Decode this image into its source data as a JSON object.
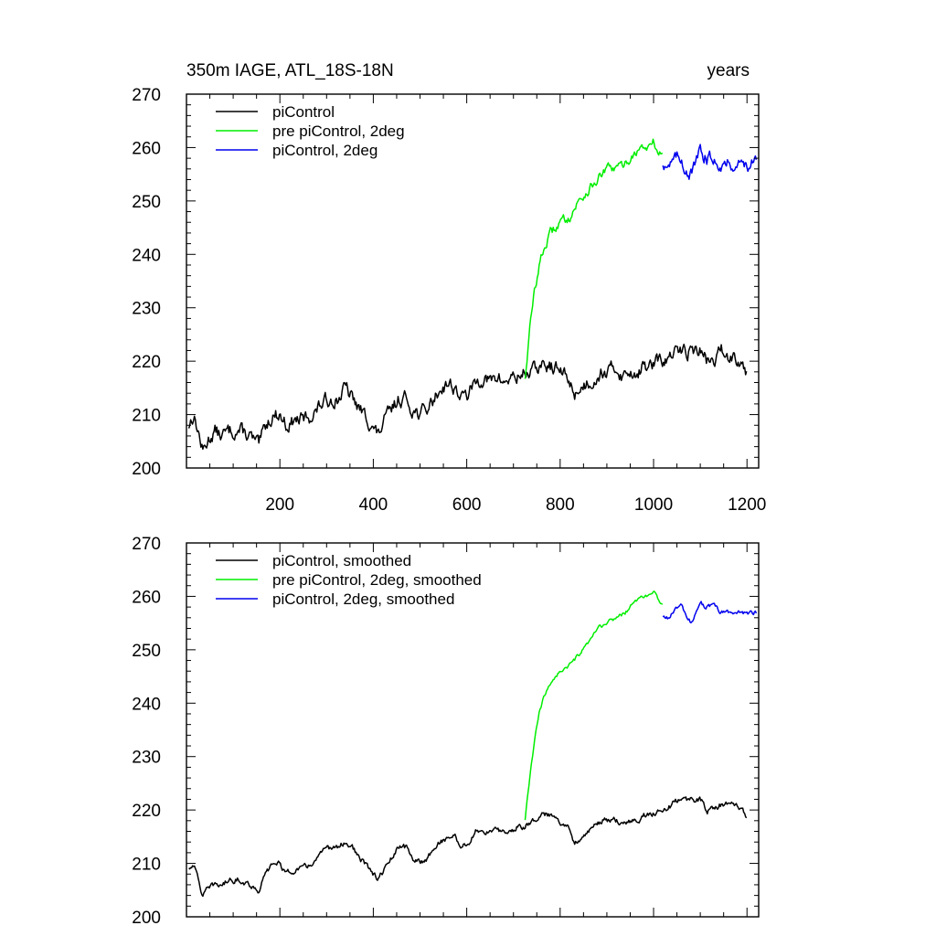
{
  "chart_data": [
    {
      "type": "line",
      "title": "350m IAGE, ATL_18S-18N",
      "units_label": "years",
      "xlabel": "",
      "ylabel": "",
      "xlim": [
        0,
        1225
      ],
      "ylim": [
        200,
        270
      ],
      "x_ticks": [
        200,
        400,
        600,
        800,
        1000,
        1200
      ],
      "y_ticks": [
        200,
        210,
        220,
        230,
        240,
        250,
        260,
        270
      ],
      "x_tick_labels": [
        "200",
        "400",
        "600",
        "800",
        "1000",
        "1200"
      ],
      "y_tick_labels": [
        "200",
        "210",
        "220",
        "230",
        "240",
        "250",
        "260",
        "270"
      ],
      "legend_position": "top-left",
      "grid": false,
      "series": [
        {
          "name": "piControl",
          "color": "#000000",
          "x_start": 5,
          "x_end": 1200,
          "anchors": [
            [
              5,
              208
            ],
            [
              15,
              210
            ],
            [
              25,
              207
            ],
            [
              35,
              203
            ],
            [
              45,
              205
            ],
            [
              60,
              207
            ],
            [
              75,
              206
            ],
            [
              95,
              207
            ],
            [
              115,
              207
            ],
            [
              135,
              206
            ],
            [
              155,
              204
            ],
            [
              170,
              208
            ],
            [
              185,
              210
            ],
            [
              200,
              210
            ],
            [
              215,
              208
            ],
            [
              235,
              209
            ],
            [
              250,
              209
            ],
            [
              270,
              210
            ],
            [
              290,
              212
            ],
            [
              310,
              213
            ],
            [
              325,
              213
            ],
            [
              340,
              215
            ],
            [
              355,
              213
            ],
            [
              370,
              211
            ],
            [
              390,
              209
            ],
            [
              410,
              206
            ],
            [
              425,
              209
            ],
            [
              440,
              211
            ],
            [
              455,
              213
            ],
            [
              470,
              213
            ],
            [
              485,
              211
            ],
            [
              500,
              210
            ],
            [
              515,
              211
            ],
            [
              530,
              213
            ],
            [
              545,
              215
            ],
            [
              560,
              216
            ],
            [
              575,
              215
            ],
            [
              590,
              213
            ],
            [
              605,
              214
            ],
            [
              620,
              216
            ],
            [
              635,
              217
            ],
            [
              650,
              216
            ],
            [
              665,
              217
            ],
            [
              680,
              216
            ],
            [
              695,
              217
            ],
            [
              710,
              217
            ],
            [
              725,
              218
            ],
            [
              740,
              218
            ],
            [
              755,
              219
            ],
            [
              770,
              219
            ],
            [
              785,
              219
            ],
            [
              800,
              218
            ],
            [
              815,
              217
            ],
            [
              830,
              214
            ],
            [
              845,
              215
            ],
            [
              860,
              216
            ],
            [
              875,
              217
            ],
            [
              890,
              218
            ],
            [
              905,
              218
            ],
            [
              920,
              219
            ],
            [
              935,
              217
            ],
            [
              950,
              218
            ],
            [
              965,
              218
            ],
            [
              980,
              219
            ],
            [
              995,
              219
            ],
            [
              1010,
              220
            ],
            [
              1025,
              220
            ],
            [
              1040,
              221
            ],
            [
              1055,
              222
            ],
            [
              1070,
              222
            ],
            [
              1085,
              222
            ],
            [
              1100,
              222
            ],
            [
              1115,
              220
            ],
            [
              1130,
              220
            ],
            [
              1145,
              222
            ],
            [
              1160,
              221
            ],
            [
              1175,
              221
            ],
            [
              1190,
              220
            ],
            [
              1200,
              218
            ]
          ],
          "noise": 1.1
        },
        {
          "name": "pre piControl, 2deg",
          "color": "#00ee00",
          "x_start": 725,
          "x_end": 1020,
          "anchors": [
            [
              725,
              217
            ],
            [
              735,
              226
            ],
            [
              745,
              233
            ],
            [
              755,
              238
            ],
            [
              765,
              241
            ],
            [
              780,
              244
            ],
            [
              800,
              246
            ],
            [
              820,
              247
            ],
            [
              840,
              250
            ],
            [
              860,
              252
            ],
            [
              880,
              254
            ],
            [
              900,
              256
            ],
            [
              920,
              256
            ],
            [
              940,
              257
            ],
            [
              960,
              259
            ],
            [
              975,
              260
            ],
            [
              990,
              260
            ],
            [
              1000,
              261
            ],
            [
              1010,
              259
            ],
            [
              1020,
              259
            ]
          ],
          "noise": 0.7
        },
        {
          "name": "piControl, 2deg",
          "color": "#0000ee",
          "x_start": 1020,
          "x_end": 1220,
          "anchors": [
            [
              1020,
              257
            ],
            [
              1035,
              257
            ],
            [
              1050,
              258
            ],
            [
              1060,
              258
            ],
            [
              1070,
              256
            ],
            [
              1080,
              255
            ],
            [
              1090,
              257
            ],
            [
              1100,
              259
            ],
            [
              1115,
              258
            ],
            [
              1130,
              258
            ],
            [
              1145,
              257
            ],
            [
              1160,
              257
            ],
            [
              1175,
              257
            ],
            [
              1190,
              257
            ],
            [
              1205,
              257
            ],
            [
              1220,
              257
            ]
          ],
          "noise": 1.0
        }
      ]
    },
    {
      "type": "line",
      "title": "",
      "xlabel": "",
      "ylabel": "",
      "xlim": [
        0,
        1225
      ],
      "ylim": [
        200,
        270
      ],
      "x_ticks": [
        200,
        400,
        600,
        800,
        1000,
        1200
      ],
      "y_ticks": [
        200,
        210,
        220,
        230,
        240,
        250,
        260,
        270
      ],
      "y_tick_labels": [
        "200",
        "210",
        "220",
        "230",
        "240",
        "250",
        "260",
        "270"
      ],
      "legend_position": "top-left",
      "grid": false,
      "series": [
        {
          "name": "piControl, smoothed",
          "color": "#000000",
          "x_start": 5,
          "x_end": 1200,
          "anchors": [
            [
              5,
              209
            ],
            [
              15,
              210
            ],
            [
              25,
              207
            ],
            [
              35,
              204
            ],
            [
              45,
              205
            ],
            [
              60,
              206
            ],
            [
              75,
              206
            ],
            [
              95,
              207
            ],
            [
              115,
              207
            ],
            [
              135,
              206
            ],
            [
              155,
              205
            ],
            [
              170,
              208
            ],
            [
              185,
              210
            ],
            [
              200,
              210
            ],
            [
              215,
              208
            ],
            [
              235,
              209
            ],
            [
              250,
              209
            ],
            [
              270,
              210
            ],
            [
              290,
              212
            ],
            [
              310,
              213
            ],
            [
              325,
              213
            ],
            [
              340,
              214
            ],
            [
              355,
              213
            ],
            [
              370,
              211
            ],
            [
              390,
              209
            ],
            [
              410,
              207
            ],
            [
              425,
              209
            ],
            [
              440,
              211
            ],
            [
              455,
              213
            ],
            [
              470,
              213
            ],
            [
              485,
              211
            ],
            [
              500,
              210
            ],
            [
              515,
              211
            ],
            [
              530,
              213
            ],
            [
              545,
              214
            ],
            [
              560,
              215
            ],
            [
              575,
              215
            ],
            [
              590,
              213
            ],
            [
              605,
              214
            ],
            [
              620,
              216
            ],
            [
              635,
              216
            ],
            [
              650,
              216
            ],
            [
              665,
              216
            ],
            [
              680,
              216
            ],
            [
              695,
              216
            ],
            [
              710,
              217
            ],
            [
              725,
              217
            ],
            [
              740,
              218
            ],
            [
              755,
              219
            ],
            [
              770,
              219
            ],
            [
              785,
              219
            ],
            [
              800,
              218
            ],
            [
              815,
              217
            ],
            [
              830,
              214
            ],
            [
              845,
              215
            ],
            [
              860,
              216
            ],
            [
              875,
              217
            ],
            [
              890,
              218
            ],
            [
              905,
              218
            ],
            [
              920,
              218
            ],
            [
              935,
              217
            ],
            [
              950,
              218
            ],
            [
              965,
              218
            ],
            [
              980,
              219
            ],
            [
              995,
              219
            ],
            [
              1010,
              220
            ],
            [
              1025,
              220
            ],
            [
              1040,
              221
            ],
            [
              1055,
              222
            ],
            [
              1070,
              222
            ],
            [
              1085,
              222
            ],
            [
              1100,
              222
            ],
            [
              1115,
              220
            ],
            [
              1130,
              220
            ],
            [
              1145,
              221
            ],
            [
              1160,
              221
            ],
            [
              1175,
              221
            ],
            [
              1190,
              220
            ],
            [
              1200,
              218
            ]
          ],
          "noise": 0.45
        },
        {
          "name": "pre piControl, 2deg, smoothed",
          "color": "#00ee00",
          "x_start": 725,
          "x_end": 1020,
          "anchors": [
            [
              725,
              218
            ],
            [
              735,
              226
            ],
            [
              745,
              233
            ],
            [
              755,
              238
            ],
            [
              765,
              241
            ],
            [
              780,
              244
            ],
            [
              800,
              246
            ],
            [
              820,
              247
            ],
            [
              840,
              249
            ],
            [
              860,
              251
            ],
            [
              880,
              254
            ],
            [
              900,
              255
            ],
            [
              920,
              256
            ],
            [
              940,
              257
            ],
            [
              960,
              259
            ],
            [
              975,
              260
            ],
            [
              990,
              260
            ],
            [
              1000,
              261
            ],
            [
              1010,
              259
            ],
            [
              1020,
              259
            ]
          ],
          "noise": 0.3
        },
        {
          "name": "piControl, 2deg, smoothed",
          "color": "#0000ee",
          "x_start": 1020,
          "x_end": 1220,
          "anchors": [
            [
              1020,
              256
            ],
            [
              1035,
              256
            ],
            [
              1050,
              258
            ],
            [
              1060,
              258
            ],
            [
              1070,
              256
            ],
            [
              1080,
              255
            ],
            [
              1090,
              257
            ],
            [
              1100,
              259
            ],
            [
              1115,
              258
            ],
            [
              1130,
              258
            ],
            [
              1145,
              257
            ],
            [
              1160,
              257
            ],
            [
              1175,
              257
            ],
            [
              1190,
              257
            ],
            [
              1205,
              257
            ],
            [
              1220,
              257
            ]
          ],
          "noise": 0.4
        }
      ]
    }
  ]
}
